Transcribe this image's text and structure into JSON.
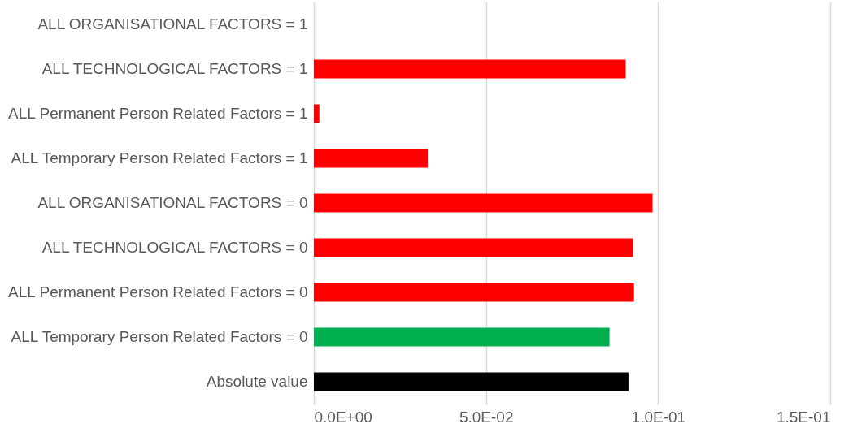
{
  "chart_data": {
    "type": "bar",
    "orientation": "horizontal",
    "categories": [
      "ALL ORGANISATIONAL FACTORS = 1",
      "ALL TECHNOLOGICAL FACTORS = 1",
      "ALL Permanent Person Related Factors = 1",
      "ALL Temporary Person Related Factors = 1",
      "ALL ORGANISATIONAL FACTORS = 0",
      "ALL TECHNOLOGICAL FACTORS = 0",
      "ALL Permanent Person Related Factors = 0",
      "ALL Temporary Person Related Factors = 0",
      "Absolute value"
    ],
    "values": [
      0,
      0.0906,
      0.0016,
      0.0331,
      0.0984,
      0.0927,
      0.093,
      0.0859,
      0.0914
    ],
    "colors": [
      "#ff0000",
      "#ff0000",
      "#ff0000",
      "#ff0000",
      "#ff0000",
      "#ff0000",
      "#ff0000",
      "#00b050",
      "#000000"
    ],
    "xlim": [
      0,
      0.15
    ],
    "xticks": [
      {
        "value": 0,
        "label": "0.0E+00"
      },
      {
        "value": 0.05,
        "label": "5.0E-02"
      },
      {
        "value": 0.1,
        "label": "1.0E-01"
      },
      {
        "value": 0.15,
        "label": "1.5E-01"
      }
    ],
    "grid": "x"
  }
}
